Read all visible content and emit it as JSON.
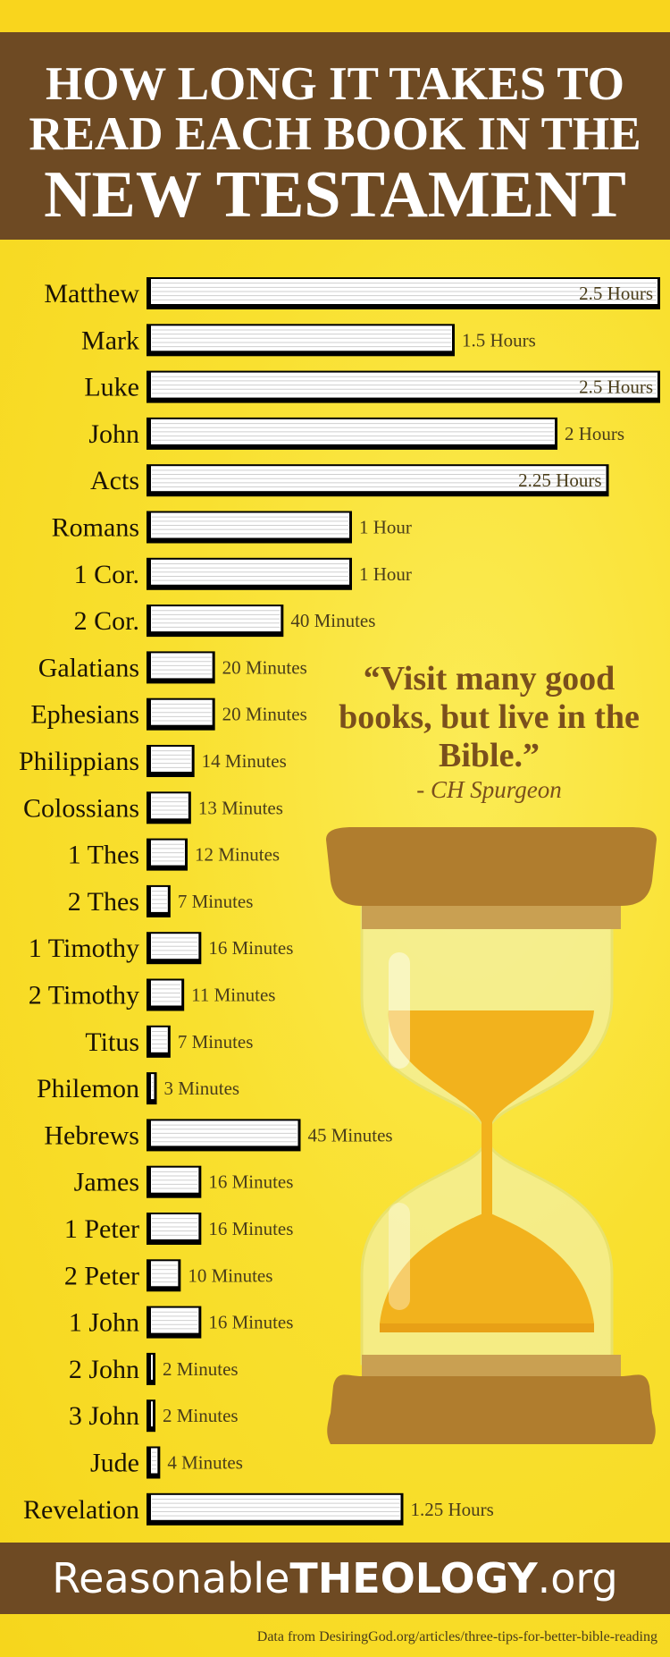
{
  "header": {
    "line1": "HOW LONG IT TAKES TO",
    "line2": "READ EACH BOOK IN THE",
    "line3": "NEW TESTAMENT"
  },
  "chart_data": {
    "type": "bar",
    "orientation": "horizontal",
    "unit": "minutes",
    "categories": [
      "Matthew",
      "Mark",
      "Luke",
      "John",
      "Acts",
      "Romans",
      "1 Cor.",
      "2 Cor.",
      "Galatians",
      "Ephesians",
      "Philippians",
      "Colossians",
      "1 Thes",
      "2 Thes",
      "1 Timothy",
      "2 Timothy",
      "Titus",
      "Philemon",
      "Hebrews",
      "James",
      "1 Peter",
      "2 Peter",
      "1 John",
      "2 John",
      "3 John",
      "Jude",
      "Revelation"
    ],
    "values": [
      150,
      90,
      150,
      120,
      135,
      60,
      60,
      40,
      20,
      20,
      14,
      13,
      12,
      7,
      16,
      11,
      7,
      3,
      45,
      16,
      16,
      10,
      16,
      2,
      2,
      4,
      75
    ],
    "value_labels": [
      "2.5 Hours",
      "1.5 Hours",
      "2.5 Hours",
      "2 Hours",
      "2.25 Hours",
      "1 Hour",
      "1 Hour",
      "40 Minutes",
      "20 Minutes",
      "20 Minutes",
      "14 Minutes",
      "13 Minutes",
      "12 Minutes",
      "7 Minutes",
      "16 Minutes",
      "11 Minutes",
      "7 Minutes",
      "3 Minutes",
      "45 Minutes",
      "16 Minutes",
      "16 Minutes",
      "10 Minutes",
      "16 Minutes",
      "2 Minutes",
      "2 Minutes",
      "4 Minutes",
      "1.25 Hours"
    ],
    "grid": false,
    "colors": {
      "bar_fill": "#ffffff",
      "bar_edge": "#000000",
      "page_lines": "#cfcfcf"
    }
  },
  "quote": {
    "text": "“Visit many good books, but live in the Bible.”",
    "author": "- CH Spurgeon"
  },
  "footer": {
    "brand_part1": "Reasonable",
    "brand_part2": "THEOLOGY",
    "brand_part3": ".org",
    "credit": "Data from DesiringGod.org/articles/three-tips-for-better-bible-reading"
  },
  "colors": {
    "background": "#f9e02f",
    "header_brown": "#6e4a23",
    "quote_brown": "#7a4f1c"
  },
  "illustration": {
    "name": "hourglass-icon"
  }
}
